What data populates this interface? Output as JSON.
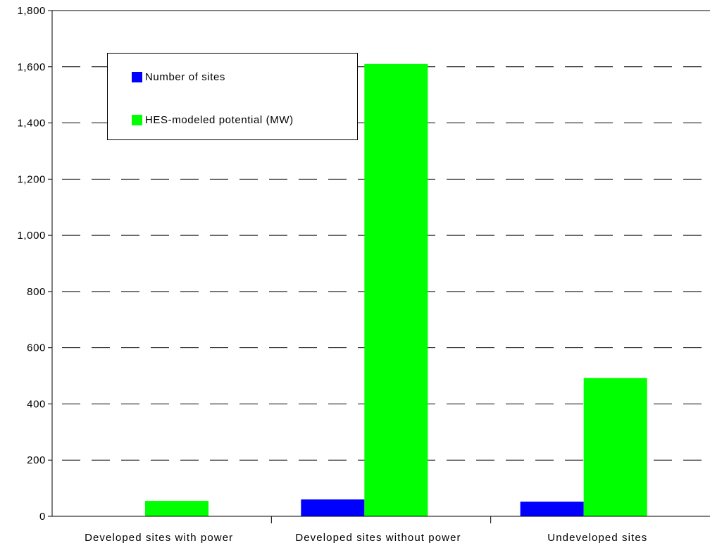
{
  "chart_data": {
    "type": "bar",
    "categories": [
      "Developed sites with power",
      "Developed sites without power",
      "Undeveloped sites"
    ],
    "series": [
      {
        "name": "Number of sites",
        "values": [
          0,
          60,
          52
        ],
        "color": "#0000ff"
      },
      {
        "name": "HES-modeled potential (MW)",
        "values": [
          55,
          1610,
          492
        ],
        "color": "#00ff00"
      }
    ],
    "ylim": [
      0,
      1800
    ],
    "yticks": [
      "0",
      "200",
      "400",
      "600",
      "800",
      "1,000",
      "1,200",
      "1,400",
      "1,600",
      "1,800"
    ],
    "grid": true,
    "grid_style": "dashed",
    "legend_position": "top-left"
  }
}
